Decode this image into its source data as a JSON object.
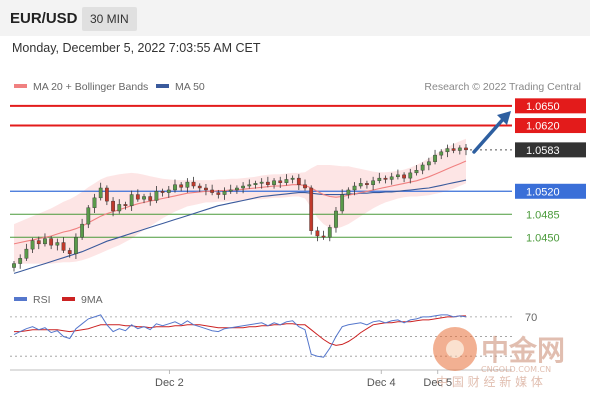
{
  "header": {
    "symbol": "EUR/USD",
    "timeframe": "30 MIN",
    "datetime": "Monday, December 5, 2022 7:03:55 AM CET"
  },
  "colors": {
    "ma20": "#f08080",
    "ma50": "#3a5a9c",
    "band_fill": "#fde4e4",
    "resistance": "#e31b1b",
    "support_blue": "#3a6fd8",
    "support_green": "#4a9a3a",
    "current": "#333333",
    "candle_up": "#5a9a4a",
    "candle_down": "#c0392b",
    "rsi": "#5577cc",
    "rsi_ma": "#cc2222",
    "arrow": "#2e5fa0"
  },
  "chart_data": [
    {
      "type": "candlestick",
      "legend": [
        {
          "name": "MA 20 + Bollinger Bands",
          "color": "#f08080"
        },
        {
          "name": "MA 50",
          "color": "#3a5a9c"
        }
      ],
      "legend_placement": "top-left",
      "credit": "Research © 2022 Trading Central",
      "ylim": [
        1.0385,
        1.0668
      ],
      "x_ticks": [
        {
          "label": "Dec 2",
          "index": 55
        },
        {
          "label": "Dec 4",
          "index": 130
        },
        {
          "label": "Dec 5",
          "index": 150
        }
      ],
      "levels": [
        {
          "value": 1.065,
          "label": "1.0650",
          "style": "resistance"
        },
        {
          "value": 1.062,
          "label": "1.0620",
          "style": "resistance"
        },
        {
          "value": 1.0583,
          "label": "1.0583",
          "style": "current"
        },
        {
          "value": 1.052,
          "label": "1.0520",
          "style": "support_blue"
        },
        {
          "value": 1.0485,
          "label": "1.0485",
          "style": "support_green"
        },
        {
          "value": 1.045,
          "label": "1.0450",
          "style": "support_green"
        }
      ],
      "close": [
        1.041,
        1.0418,
        1.0432,
        1.0445,
        1.044,
        1.0448,
        1.0438,
        1.0442,
        1.043,
        1.0425,
        1.045,
        1.047,
        1.0495,
        1.051,
        1.0525,
        1.0505,
        1.049,
        1.05,
        1.0498,
        1.0515,
        1.0508,
        1.0512,
        1.0506,
        1.052,
        1.0518,
        1.0522,
        1.053,
        1.0526,
        1.0534,
        1.0528,
        1.0525,
        1.0522,
        1.0518,
        1.0515,
        1.052,
        1.0522,
        1.0525,
        1.0528,
        1.053,
        1.0532,
        1.0534,
        1.053,
        1.0536,
        1.0533,
        1.0538,
        1.054,
        1.053,
        1.0525,
        1.046,
        1.0452,
        1.045,
        1.0465,
        1.049,
        1.0515,
        1.0522,
        1.0528,
        1.0532,
        1.053,
        1.0536,
        1.054,
        1.0538,
        1.0542,
        1.0545,
        1.054,
        1.0548,
        1.0552,
        1.056,
        1.0565,
        1.0575,
        1.058,
        1.0585,
        1.0582,
        1.0586,
        1.0583
      ],
      "ma20": [
        1.044,
        1.0442,
        1.0444,
        1.0446,
        1.0448,
        1.045,
        1.0452,
        1.0455,
        1.0458,
        1.046,
        1.0463,
        1.0467,
        1.0472,
        1.0477,
        1.0482,
        1.0486,
        1.0489,
        1.0492,
        1.0495,
        1.0498,
        1.0501,
        1.0503,
        1.0505,
        1.0507,
        1.0509,
        1.0511,
        1.0513,
        1.0515,
        1.0517,
        1.0518,
        1.0519,
        1.052,
        1.052,
        1.0521,
        1.0521,
        1.0522,
        1.0522,
        1.0523,
        1.0524,
        1.0525,
        1.0526,
        1.0527,
        1.0528,
        1.0528,
        1.0529,
        1.053,
        1.053,
        1.0529,
        1.0525,
        1.052,
        1.0515,
        1.0512,
        1.0511,
        1.0512,
        1.0514,
        1.0516,
        1.0518,
        1.052,
        1.0522,
        1.0524,
        1.0526,
        1.0528,
        1.053,
        1.0532,
        1.0534,
        1.0536,
        1.0539,
        1.0542,
        1.0546,
        1.055,
        1.0554,
        1.0558,
        1.0562,
        1.0566
      ],
      "band_halfwidth": [
        0.003,
        0.0032,
        0.0034,
        0.0036,
        0.0038,
        0.004,
        0.0042,
        0.0044,
        0.0046,
        0.0048,
        0.005,
        0.0052,
        0.0054,
        0.0055,
        0.0056,
        0.0056,
        0.0055,
        0.0054,
        0.0052,
        0.005,
        0.0046,
        0.0042,
        0.0038,
        0.0034,
        0.003,
        0.0027,
        0.0024,
        0.0022,
        0.002,
        0.0019,
        0.0018,
        0.0017,
        0.0017,
        0.0017,
        0.0017,
        0.0017,
        0.0017,
        0.0017,
        0.0017,
        0.0017,
        0.0018,
        0.0018,
        0.0018,
        0.0018,
        0.0018,
        0.0018,
        0.0018,
        0.002,
        0.003,
        0.004,
        0.0045,
        0.0048,
        0.0048,
        0.0046,
        0.0044,
        0.004,
        0.0036,
        0.0032,
        0.0028,
        0.0025,
        0.0023,
        0.0022,
        0.0021,
        0.0021,
        0.0022,
        0.0024,
        0.0026,
        0.0028,
        0.003,
        0.0032,
        0.0033,
        0.0034,
        0.0034,
        0.0034
      ],
      "ma50": [
        1.0395,
        1.0398,
        1.0401,
        1.0404,
        1.0407,
        1.041,
        1.0413,
        1.0416,
        1.0419,
        1.0422,
        1.0425,
        1.0428,
        1.0432,
        1.0436,
        1.044,
        1.0444,
        1.0447,
        1.045,
        1.0453,
        1.0456,
        1.0459,
        1.0462,
        1.0465,
        1.0468,
        1.0471,
        1.0474,
        1.0477,
        1.048,
        1.0483,
        1.0486,
        1.0489,
        1.0492,
        1.0495,
        1.0498,
        1.05,
        1.0502,
        1.0504,
        1.0506,
        1.0508,
        1.051,
        1.0512,
        1.0513,
        1.0514,
        1.0515,
        1.0516,
        1.0517,
        1.0518,
        1.0518,
        1.0517,
        1.0516,
        1.0515,
        1.0515,
        1.0515,
        1.0515,
        1.0516,
        1.0516,
        1.0517,
        1.0517,
        1.0518,
        1.0518,
        1.0519,
        1.0519,
        1.052,
        1.0521,
        1.0522,
        1.0523,
        1.0524,
        1.0525,
        1.0527,
        1.0529,
        1.0531,
        1.0533,
        1.0535,
        1.0537
      ]
    },
    {
      "type": "line",
      "legend": [
        {
          "name": "RSI",
          "color": "#5577cc"
        },
        {
          "name": "9MA",
          "color": "#cc2222"
        }
      ],
      "ylim": [
        20,
        75
      ],
      "y_ticks": [
        {
          "value": 70,
          "label": "70"
        }
      ],
      "guides": [
        70,
        50,
        30
      ],
      "rsi": [
        52,
        55,
        58,
        60,
        57,
        59,
        54,
        56,
        50,
        48,
        58,
        63,
        68,
        70,
        72,
        62,
        55,
        58,
        56,
        62,
        58,
        60,
        57,
        63,
        61,
        63,
        65,
        62,
        66,
        62,
        60,
        58,
        56,
        55,
        58,
        59,
        60,
        61,
        62,
        63,
        64,
        61,
        64,
        62,
        65,
        66,
        60,
        57,
        32,
        30,
        29,
        38,
        50,
        60,
        62,
        63,
        64,
        62,
        65,
        66,
        64,
        66,
        67,
        64,
        67,
        68,
        70,
        70,
        71,
        72,
        72,
        70,
        71,
        70
      ],
      "rsi_ma": [
        55,
        55,
        56,
        57,
        57,
        57,
        57,
        57,
        56,
        55,
        56,
        57,
        58,
        60,
        62,
        62,
        62,
        62,
        61,
        61,
        60,
        60,
        59,
        60,
        60,
        60,
        61,
        61,
        62,
        62,
        62,
        61,
        60,
        59,
        59,
        59,
        59,
        59,
        60,
        60,
        61,
        61,
        62,
        62,
        63,
        63,
        62,
        62,
        57,
        52,
        47,
        43,
        41,
        42,
        45,
        49,
        54,
        58,
        62,
        63,
        64,
        64,
        65,
        65,
        65,
        66,
        67,
        67,
        68,
        69,
        70,
        70,
        71,
        71
      ]
    }
  ],
  "watermark": {
    "name": "中金网",
    "site": "CNGOLD.COM.CN",
    "slogan": "中 国 财 经 新 媒 体"
  }
}
